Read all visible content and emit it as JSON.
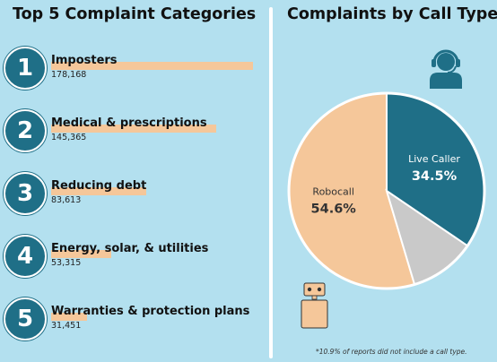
{
  "left_panel": {
    "title": "Top 5 Complaint Categories"
  },
  "right_panel": {
    "title": "Complaints by Call Type",
    "footnote": "*10.9% of reports did not include a call type."
  },
  "chart_data": [
    {
      "type": "bar",
      "title": "Top 5 Complaint Categories",
      "categories": [
        "Imposters",
        "Medical & prescriptions",
        "Reducing debt",
        "Energy, solar, & utilities",
        "Warranties & protection plans"
      ],
      "ranks": [
        "1",
        "2",
        "3",
        "4",
        "5"
      ],
      "values": [
        178168,
        145365,
        83613,
        53315,
        31451
      ],
      "value_labels": [
        "178,168",
        "145,365",
        "83,613",
        "53,315",
        "31,451"
      ],
      "bar_color": "#f5c79a",
      "rank_color": "#1f6f87"
    },
    {
      "type": "pie",
      "title": "Complaints by Call Type",
      "slices": [
        {
          "name": "Live Caller",
          "value": 34.5,
          "label": "34.5%",
          "color": "#1f6f87",
          "label_color": "#ffffff"
        },
        {
          "name": "",
          "value": 10.9,
          "label": "",
          "color": "#c9c9c9",
          "label_color": "#333333"
        },
        {
          "name": "Robocall",
          "value": 54.6,
          "label": "54.6%",
          "color": "#f5c79a",
          "label_color": "#333333"
        }
      ],
      "start_angle_deg": 0
    }
  ],
  "icons": {
    "headset": {
      "name": "headset-person-icon",
      "color": "#1f6f87"
    },
    "robot": {
      "name": "robot-icon",
      "color": "#f5c79a"
    }
  }
}
